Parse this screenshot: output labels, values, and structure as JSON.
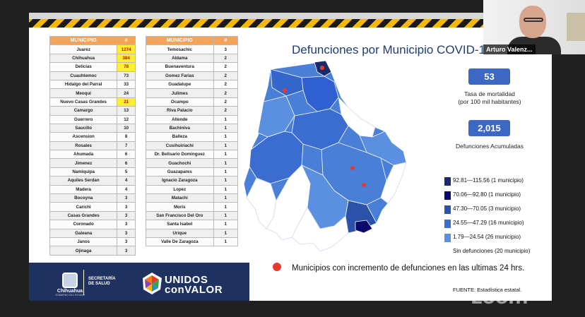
{
  "table_left": {
    "headers": [
      "MUNICIPIO",
      "#"
    ],
    "rows": [
      {
        "name": "Juarez",
        "count": "1274",
        "highlight": true
      },
      {
        "name": "Chihuahua",
        "count": "384",
        "highlight": true
      },
      {
        "name": "Delicias",
        "count": "78",
        "highlight": true
      },
      {
        "name": "Cuauhtemoc",
        "count": "73",
        "highlight": false
      },
      {
        "name": "Hidalgo del Parral",
        "count": "33",
        "highlight": false
      },
      {
        "name": "Meoqui",
        "count": "24",
        "highlight": false
      },
      {
        "name": "Nuevo Casas Grandes",
        "count": "21",
        "highlight": true
      },
      {
        "name": "Camargo",
        "count": "13",
        "highlight": false
      },
      {
        "name": "Guerrero",
        "count": "12",
        "highlight": false
      },
      {
        "name": "Saucillo",
        "count": "10",
        "highlight": false
      },
      {
        "name": "Ascension",
        "count": "8",
        "highlight": false
      },
      {
        "name": "Rosales",
        "count": "7",
        "highlight": false
      },
      {
        "name": "Ahumada",
        "count": "6",
        "highlight": false
      },
      {
        "name": "Jimenez",
        "count": "6",
        "highlight": false
      },
      {
        "name": "Namiquipa",
        "count": "5",
        "highlight": false
      },
      {
        "name": "Aquiles Serdan",
        "count": "4",
        "highlight": false
      },
      {
        "name": "Madera",
        "count": "4",
        "highlight": false
      },
      {
        "name": "Bocoyna",
        "count": "3",
        "highlight": false
      },
      {
        "name": "Carichi",
        "count": "3",
        "highlight": false
      },
      {
        "name": "Casas Grandes",
        "count": "3",
        "highlight": false
      },
      {
        "name": "Coronado",
        "count": "3",
        "highlight": false
      },
      {
        "name": "Galeana",
        "count": "3",
        "highlight": false
      },
      {
        "name": "Janos",
        "count": "3",
        "highlight": false
      },
      {
        "name": "Ojinaga",
        "count": "3",
        "highlight": false
      }
    ]
  },
  "table_right": {
    "headers": [
      "MUNICIPIO",
      "#"
    ],
    "rows": [
      {
        "name": "Temosachic",
        "count": "3"
      },
      {
        "name": "Aldama",
        "count": "2"
      },
      {
        "name": "Buenaventura",
        "count": "2"
      },
      {
        "name": "Gomez Farias",
        "count": "2"
      },
      {
        "name": "Guadalupe",
        "count": "2"
      },
      {
        "name": "Julimes",
        "count": "2"
      },
      {
        "name": "Ocampo",
        "count": "2"
      },
      {
        "name": "Riva Palacio",
        "count": "2"
      },
      {
        "name": "Allende",
        "count": "1"
      },
      {
        "name": "Bachiniva",
        "count": "1"
      },
      {
        "name": "Balleza",
        "count": "1"
      },
      {
        "name": "Cusihuiriachi",
        "count": "1"
      },
      {
        "name": "Dr. Belisario Dominguez",
        "count": "1"
      },
      {
        "name": "Guachochi",
        "count": "1"
      },
      {
        "name": "Guazapares",
        "count": "1"
      },
      {
        "name": "Ignacio Zaragoza",
        "count": "1"
      },
      {
        "name": "Lopez",
        "count": "1"
      },
      {
        "name": "Matachi",
        "count": "1"
      },
      {
        "name": "Moris",
        "count": "1"
      },
      {
        "name": "San Francisco Del Oro",
        "count": "1"
      },
      {
        "name": "Santa Isabel",
        "count": "1"
      },
      {
        "name": "Urique",
        "count": "1"
      },
      {
        "name": "Valle De Zaragoza",
        "count": "1"
      }
    ]
  },
  "slide": {
    "title": "Defunciones por Municipio COVID-19",
    "mortality_value": "53",
    "mortality_label_1": "Tasa de mortalidad",
    "mortality_label_2": "(por 100 mil habitantes)",
    "deaths_value": "2,015",
    "deaths_label": "Defunciones Acumuladas",
    "note": "Municipios con incremento de defunciones en las ultimas 24 hrs.",
    "source": "FUENTE: Estadística estatal."
  },
  "legend": [
    {
      "label": "92.81—115.56 (1 municipio)",
      "color": "#1c2a6b"
    },
    {
      "label": "70.06—92.80 (1 municipio)",
      "color": "#0a0a6e"
    },
    {
      "label": "47.30—70.05 (3 municipio)",
      "color": "#2a52a8"
    },
    {
      "label": "24.55—47.29 (16 municipio)",
      "color": "#3b6dd0"
    },
    {
      "label": "1.79—24.54 (26 municipio)",
      "color": "#5b8fe0"
    },
    {
      "label": "Sin defunciones (20 municipio)",
      "color": "#ffffff"
    }
  ],
  "footer": {
    "gov_name": "Chihuahua",
    "gov_sub": "GOBIERNO DEL ESTADO",
    "health_1": "SECRETARÍA",
    "health_2": "DE SALUD",
    "campaign_1": "UNIDOS",
    "campaign_2": "conVALOR"
  },
  "participant": {
    "name": "Arturo Valenz..."
  },
  "watermark": "zoom",
  "colors": {
    "header_orange": "#f4a45a",
    "highlight_yellow": "#ffee36",
    "title_blue": "#1e3d73",
    "stat_blue": "#3c68c4",
    "alert_red": "#e63a2c",
    "footer_navy": "#1f3160"
  }
}
